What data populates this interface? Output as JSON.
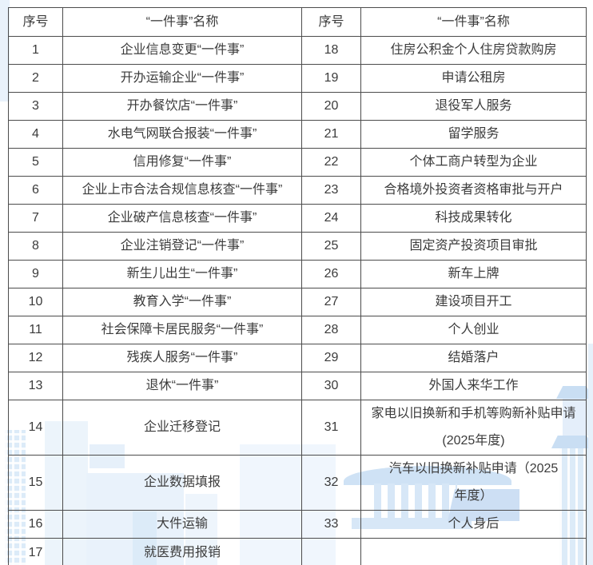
{
  "colors": {
    "text": "#3b3b3b",
    "border": "#4c4c4c",
    "background": "#ffffff",
    "watermark_light": "#e9f2fb",
    "watermark_mid": "#dcebf8",
    "watermark_accent": "#c9def3"
  },
  "watermark": {
    "motif": "light-blue city skyline with traditional temple and pagoda"
  },
  "table": {
    "header_no": "序号",
    "header_name": "“一件事”名称",
    "rows": [
      {
        "l_no": "1",
        "l_name": "企业信息变更“一件事”",
        "r_no": "18",
        "r_name": "住房公积金个人住房贷款购房"
      },
      {
        "l_no": "2",
        "l_name": "开办运输企业“一件事”",
        "r_no": "19",
        "r_name": "申请公租房"
      },
      {
        "l_no": "3",
        "l_name": "开办餐饮店“一件事”",
        "r_no": "20",
        "r_name": "退役军人服务"
      },
      {
        "l_no": "4",
        "l_name": "水电气网联合报装“一件事”",
        "r_no": "21",
        "r_name": "留学服务"
      },
      {
        "l_no": "5",
        "l_name": "信用修复“一件事”",
        "r_no": "22",
        "r_name": "个体工商户转型为企业"
      },
      {
        "l_no": "6",
        "l_name": "企业上市合法合规信息核查“一件事”",
        "r_no": "23",
        "r_name": "合格境外投资者资格审批与开户"
      },
      {
        "l_no": "7",
        "l_name": "企业破产信息核查“一件事”",
        "r_no": "24",
        "r_name": "科技成果转化"
      },
      {
        "l_no": "8",
        "l_name": "企业注销登记“一件事”",
        "r_no": "25",
        "r_name": "固定资产投资项目审批"
      },
      {
        "l_no": "9",
        "l_name": "新生儿出生“一件事”",
        "r_no": "26",
        "r_name": "新车上牌"
      },
      {
        "l_no": "10",
        "l_name": "教育入学“一件事”",
        "r_no": "27",
        "r_name": "建设项目开工"
      },
      {
        "l_no": "11",
        "l_name": "社会保障卡居民服务“一件事”",
        "r_no": "28",
        "r_name": "个人创业"
      },
      {
        "l_no": "12",
        "l_name": "残疾人服务“一件事”",
        "r_no": "29",
        "r_name": "结婚落户"
      },
      {
        "l_no": "13",
        "l_name": "退休“一件事”",
        "r_no": "30",
        "r_name": "外国人来华工作"
      },
      {
        "l_no": "14",
        "l_name": "企业迁移登记",
        "r_no": "31",
        "r_name": "家电以旧换新和手机等购新补贴申请\n(2025年度)"
      },
      {
        "l_no": "15",
        "l_name": "企业数据填报",
        "r_no": "32",
        "r_name": "汽车以旧换新补贴申请（2025\n年度）"
      },
      {
        "l_no": "16",
        "l_name": "大件运输",
        "r_no": "33",
        "r_name": "个人身后"
      },
      {
        "l_no": "17",
        "l_name": "就医费用报销",
        "r_no": "",
        "r_name": ""
      }
    ]
  }
}
